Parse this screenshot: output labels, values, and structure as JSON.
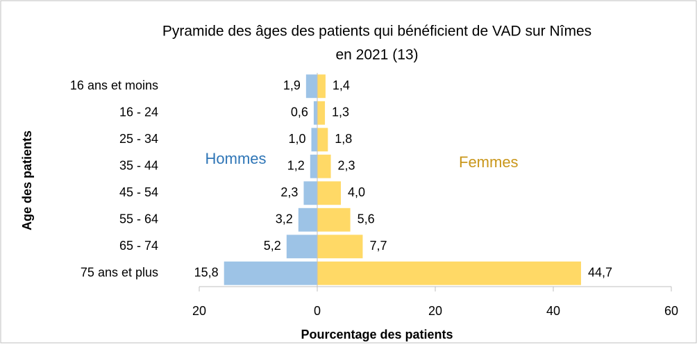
{
  "chart_data": {
    "type": "pyramid",
    "title": [
      "Pyramide des âges des patients qui bénéficient de VAD sur Nîmes",
      "en 2021 (13)"
    ],
    "xlabel": "Pourcentage des patients",
    "ylabel": "Age des patients",
    "categories": [
      "16 ans et moins",
      "16 - 24",
      "25 - 34",
      "35 - 44",
      "45 - 54",
      "55 - 64",
      "65 - 74",
      "75 ans et plus"
    ],
    "series": [
      {
        "name": "Hommes",
        "color": "#9dc3e6",
        "label_color": "#2e75b6",
        "values": [
          -1.9,
          -0.6,
          -1.0,
          -1.2,
          -2.3,
          -3.2,
          -5.2,
          -15.8
        ],
        "value_labels": [
          "1,9",
          "0,6",
          "1,0",
          "1,2",
          "2,3",
          "3,2",
          "5,2",
          "15,8"
        ]
      },
      {
        "name": "Femmes",
        "color": "#ffd966",
        "label_color": "#c9961a",
        "values": [
          1.4,
          1.3,
          1.8,
          2.3,
          4.0,
          5.6,
          7.7,
          44.7
        ],
        "value_labels": [
          "1,4",
          "1,3",
          "1,8",
          "2,3",
          "4,0",
          "5,6",
          "7,7",
          "44,7"
        ]
      }
    ],
    "xlim": [
      -20,
      60
    ],
    "xticks": [
      {
        "value": -20,
        "label": "20"
      },
      0,
      20,
      40,
      60
    ]
  }
}
